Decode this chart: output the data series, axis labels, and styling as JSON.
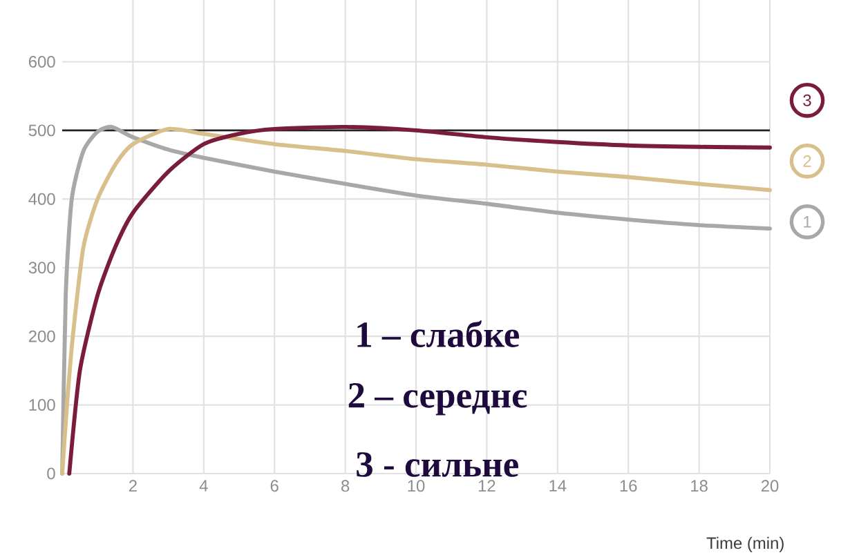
{
  "chart_data": {
    "type": "line",
    "xlabel": "Time (min)",
    "xlim": [
      0,
      20
    ],
    "ylim": [
      0,
      690
    ],
    "xticks": [
      2,
      4,
      6,
      8,
      10,
      12,
      14,
      16,
      18,
      20
    ],
    "yticks": [
      0,
      100,
      200,
      300,
      400,
      500,
      600
    ],
    "grid": true,
    "legend": "right",
    "marker": "none",
    "line_style": "solid",
    "ref_lines": [
      {
        "axis": "y",
        "value": 500,
        "color": "#222222"
      }
    ],
    "series": [
      {
        "name": "1",
        "color": "#a8a8a8",
        "x": [
          0,
          0.1,
          0.27,
          0.6,
          1,
          1.4,
          2,
          3,
          4,
          6,
          8,
          10,
          12,
          14,
          16,
          18,
          20
        ],
        "values": [
          0,
          260,
          400,
          470,
          498,
          505,
          490,
          472,
          460,
          440,
          422,
          405,
          393,
          380,
          370,
          362,
          357
        ]
      },
      {
        "name": "2",
        "color": "#d8bf8c",
        "x": [
          0,
          0.15,
          0.3,
          0.6,
          1,
          1.5,
          2,
          3,
          4,
          6,
          8,
          10,
          12,
          14,
          16,
          18,
          20
        ],
        "values": [
          0,
          110,
          200,
          330,
          400,
          450,
          480,
          502,
          495,
          480,
          470,
          458,
          450,
          440,
          432,
          422,
          413
        ]
      },
      {
        "name": "3",
        "color": "#7a1d3c",
        "x": [
          0.2,
          0.5,
          1,
          1.5,
          2,
          3,
          4,
          5,
          6,
          8,
          10,
          12,
          14,
          16,
          18,
          20
        ],
        "values": [
          0,
          150,
          260,
          330,
          380,
          440,
          480,
          495,
          502,
          505,
          500,
          490,
          483,
          478,
          476,
          475
        ]
      }
    ],
    "annotations": [
      "1 – слабке",
      "2 – середнє",
      "3 - сильне"
    ]
  }
}
